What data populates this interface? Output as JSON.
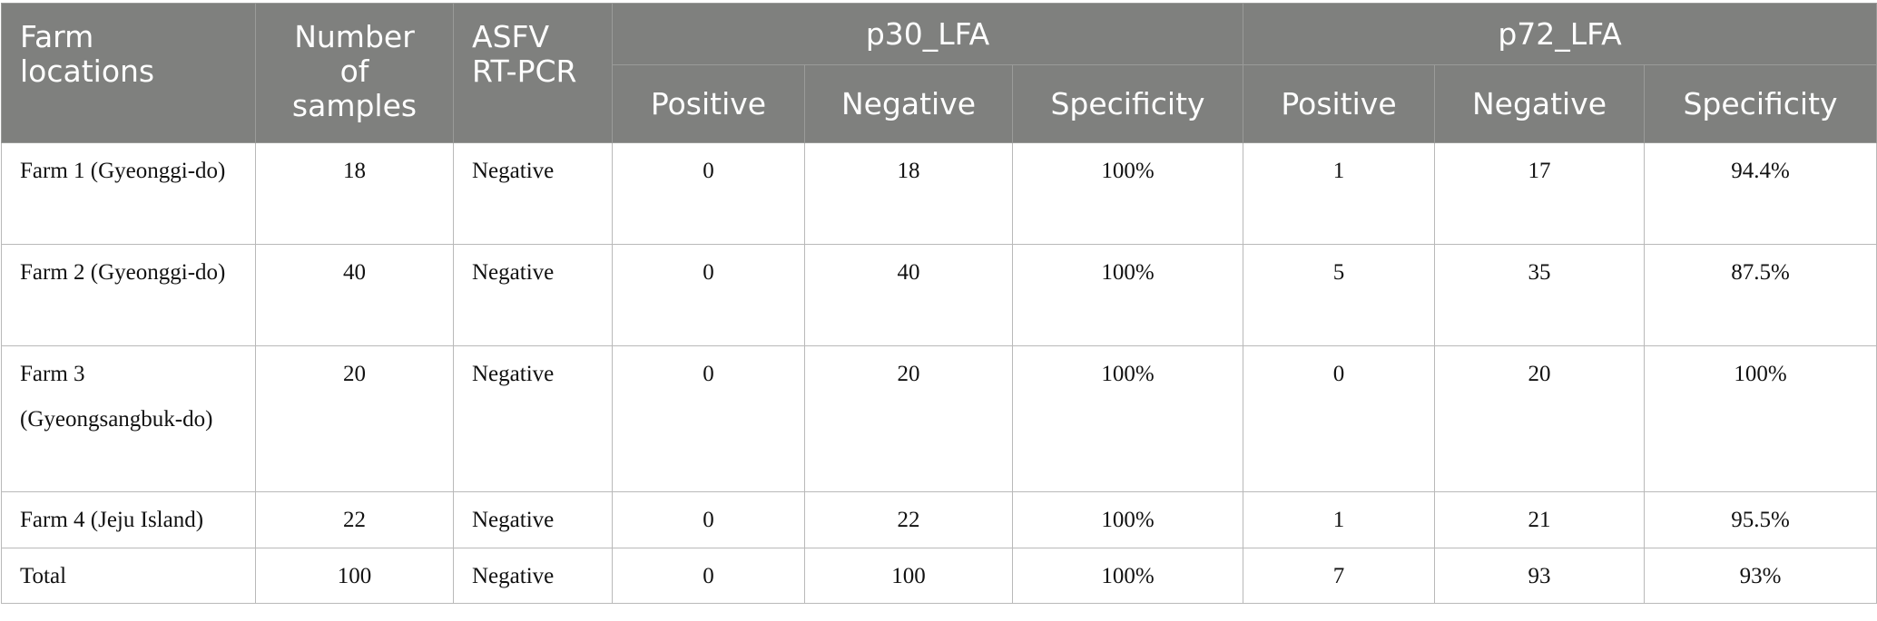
{
  "headers": {
    "farm_locations": "Farm locations",
    "number_of_samples": "Number of samples",
    "asfv": "ASFV RT-PCR",
    "p30_group": "p30_LFA",
    "p72_group": "p72_LFA",
    "p30_positive": "Positive",
    "p30_negative": "Negative",
    "p30_specificity": "Specificity",
    "p72_positive": "Positive",
    "p72_negative": "Negative",
    "p72_specificity": "Specificity"
  },
  "rows": [
    {
      "farm": "Farm 1 (Gyeonggi-do)",
      "samples": "18",
      "asfv": "Negative",
      "p30_pos": "0",
      "p30_neg": "18",
      "p30_spec": "100%",
      "p72_pos": "1",
      "p72_neg": "17",
      "p72_spec": "94.4%"
    },
    {
      "farm": "Farm 2 (Gyeonggi-do)",
      "samples": "40",
      "asfv": "Negative",
      "p30_pos": "0",
      "p30_neg": "40",
      "p30_spec": "100%",
      "p72_pos": "5",
      "p72_neg": "35",
      "p72_spec": "87.5%"
    },
    {
      "farm": "Farm 3 (Gyeongsangbuk-do)",
      "samples": "20",
      "asfv": "Negative",
      "p30_pos": "0",
      "p30_neg": "20",
      "p30_spec": "100%",
      "p72_pos": "0",
      "p72_neg": "20",
      "p72_spec": "100%"
    },
    {
      "farm": "Farm 4 (Jeju Island)",
      "samples": "22",
      "asfv": "Negative",
      "p30_pos": "0",
      "p30_neg": "22",
      "p30_spec": "100%",
      "p72_pos": "1",
      "p72_neg": "21",
      "p72_spec": "95.5%"
    },
    {
      "farm": "Total",
      "samples": "100",
      "asfv": "Negative",
      "p30_pos": "0",
      "p30_neg": "100",
      "p30_spec": "100%",
      "p72_pos": "7",
      "p72_neg": "93",
      "p72_spec": "93%"
    }
  ]
}
